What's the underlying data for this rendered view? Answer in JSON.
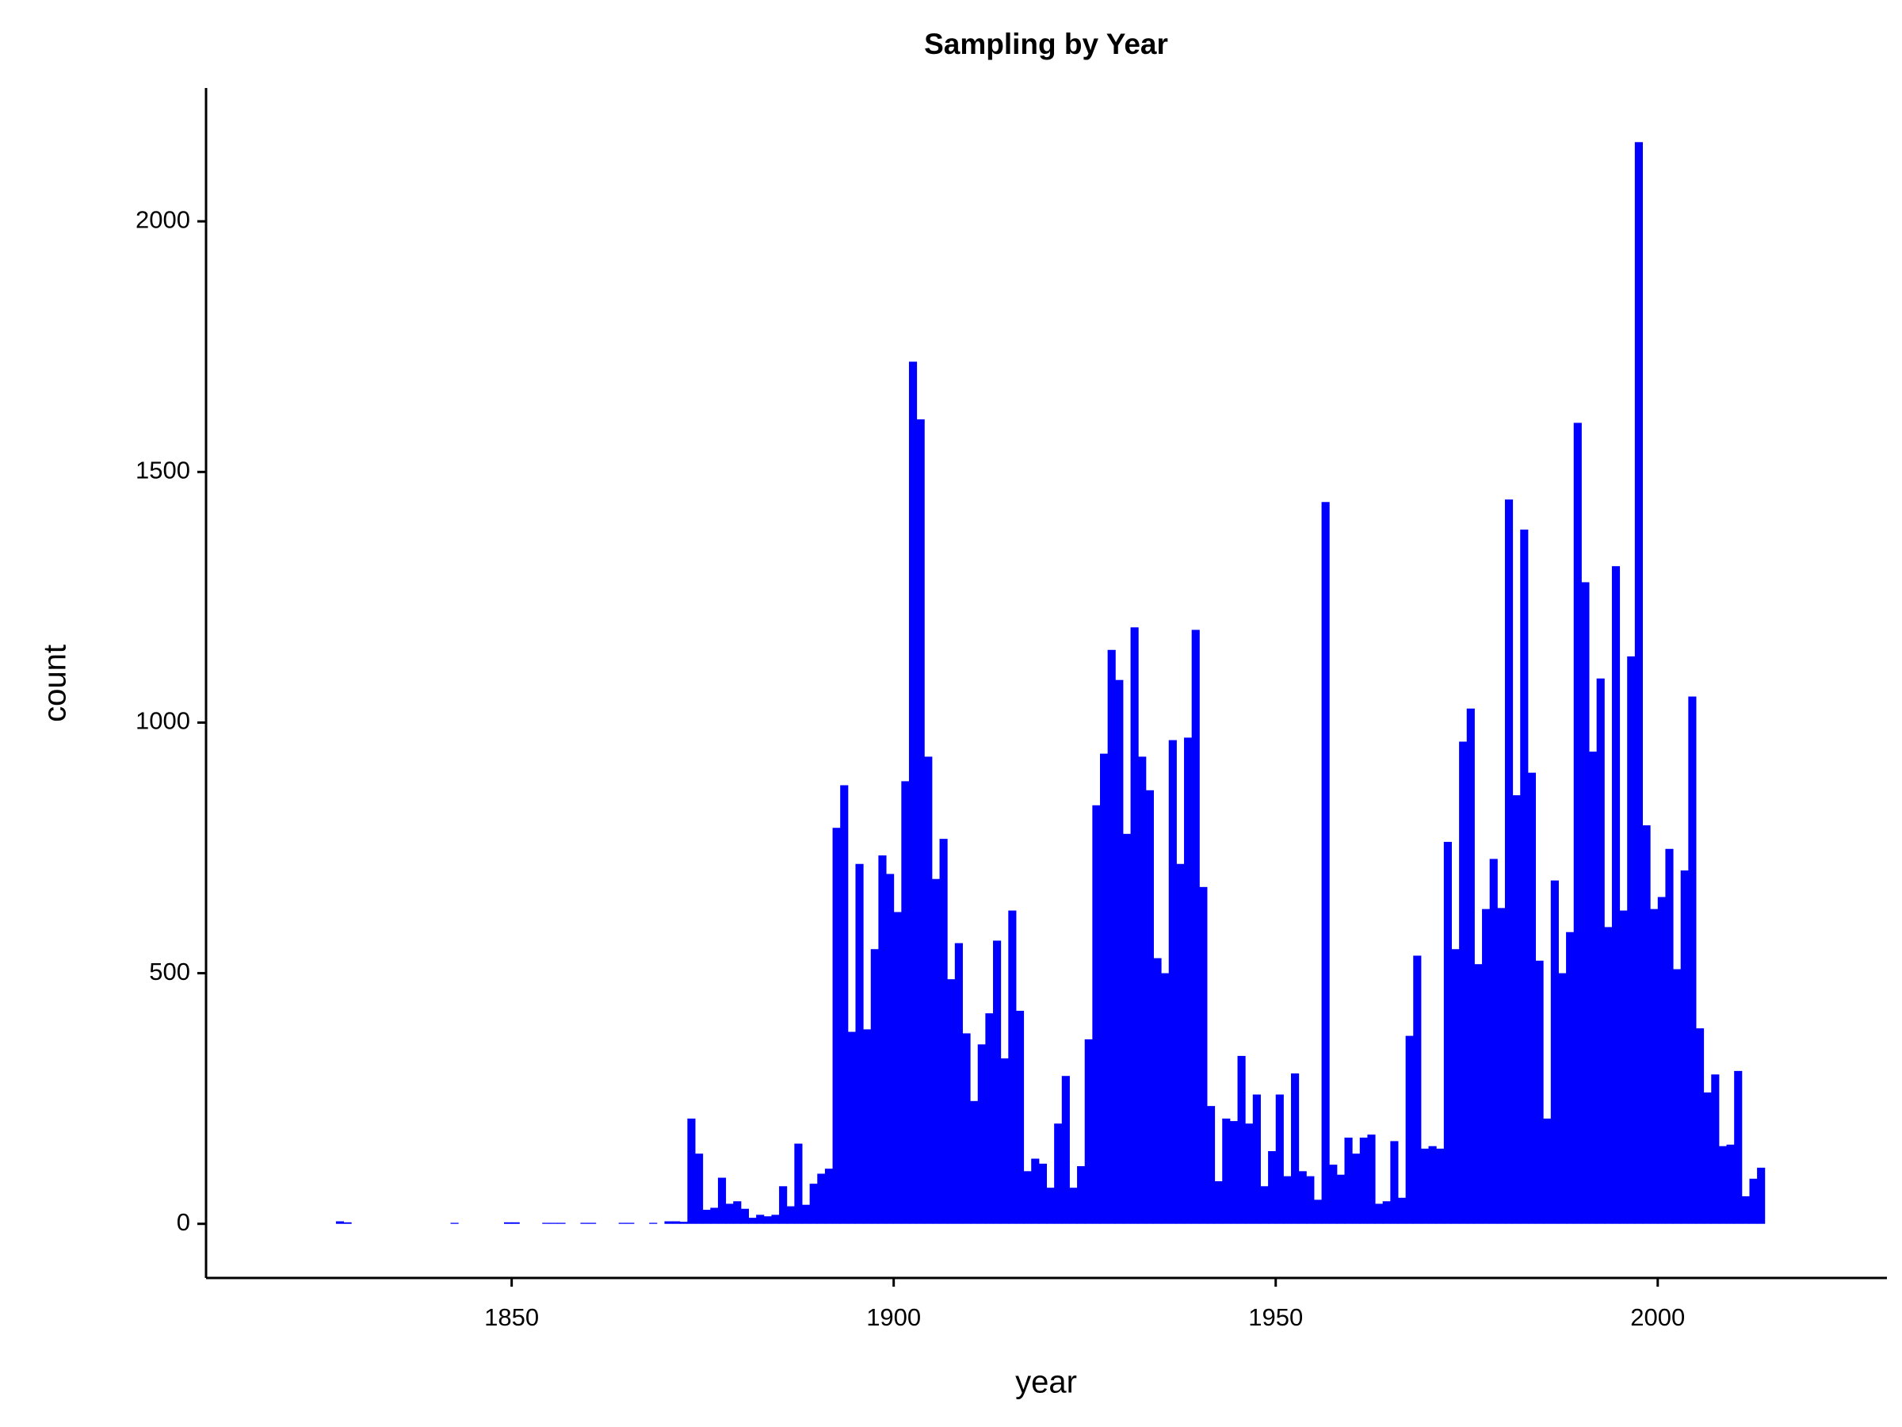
{
  "chart_data": {
    "type": "histogram",
    "title": "Sampling by Year",
    "xlabel": "year",
    "ylabel": "count",
    "color": "#0000ff",
    "bins": [
      1827,
      1828,
      1829,
      1830,
      1831,
      1832,
      1833,
      1834,
      1835,
      1836,
      1837,
      1838,
      1839,
      1840,
      1841,
      1842,
      1843,
      1844,
      1845,
      1846,
      1847,
      1848,
      1849,
      1850,
      1851,
      1852,
      1853,
      1854,
      1855,
      1856,
      1857,
      1858,
      1859,
      1860,
      1861,
      1862,
      1863,
      1864,
      1865,
      1866,
      1867,
      1868,
      1869,
      1870,
      1871,
      1872,
      1873,
      1874,
      1875,
      1876,
      1877,
      1878,
      1879,
      1880,
      1881,
      1882,
      1883,
      1884,
      1885,
      1886,
      1887,
      1888,
      1889,
      1890,
      1891,
      1892,
      1893,
      1894,
      1895,
      1896,
      1897,
      1898,
      1899,
      1900,
      1901,
      1902,
      1903,
      1904,
      1905,
      1906,
      1907,
      1908,
      1909,
      1910,
      1911,
      1912,
      1913,
      1914,
      1915,
      1916,
      1917,
      1918,
      1919,
      1920,
      1921,
      1922,
      1923,
      1924,
      1925,
      1926,
      1927,
      1928,
      1929,
      1930,
      1931,
      1932,
      1933,
      1934,
      1935,
      1936,
      1937,
      1938,
      1939,
      1940,
      1941,
      1942,
      1943,
      1944,
      1945,
      1946,
      1947,
      1948,
      1949,
      1950,
      1951,
      1952,
      1953,
      1954,
      1955,
      1956,
      1957,
      1958,
      1959,
      1960,
      1961,
      1962,
      1963,
      1964,
      1965,
      1966,
      1967,
      1968,
      1969,
      1970,
      1971,
      1972,
      1973,
      1974,
      1975,
      1976,
      1977,
      1978,
      1979,
      1980,
      1981,
      1982,
      1983,
      1984,
      1985,
      1986,
      1987,
      1988,
      1989,
      1990,
      1991,
      1992,
      1993,
      1994,
      1995,
      1996,
      1997,
      1998,
      1999,
      2000,
      2001,
      2002,
      2003,
      2004,
      2005,
      2006,
      2007,
      2008,
      2009,
      2010,
      2011,
      2012,
      2013,
      2014
    ],
    "values": [
      5,
      3,
      0,
      0,
      0,
      0,
      0,
      0,
      0,
      0,
      0,
      0,
      0,
      0,
      0,
      2,
      0,
      0,
      0,
      0,
      0,
      0,
      3,
      3,
      0,
      0,
      0,
      2,
      2,
      2,
      0,
      0,
      2,
      2,
      0,
      0,
      0,
      2,
      2,
      0,
      0,
      2,
      0,
      5,
      5,
      4,
      210,
      140,
      28,
      32,
      92,
      40,
      45,
      30,
      12,
      18,
      15,
      18,
      75,
      35,
      160,
      38,
      80,
      100,
      110,
      790,
      875,
      383,
      718,
      388,
      548,
      735,
      698,
      622,
      883,
      1720,
      1605,
      932,
      688,
      768,
      488,
      560,
      380,
      245,
      358,
      420,
      565,
      330,
      625,
      425,
      105,
      130,
      120,
      72,
      200,
      295,
      72,
      115,
      368,
      835,
      938,
      1145,
      1085,
      778,
      1190,
      932,
      865,
      530,
      500,
      965,
      718,
      970,
      1185,
      672,
      235,
      85,
      210,
      205,
      335,
      200,
      258,
      75,
      145,
      258,
      95,
      300,
      105,
      95,
      48,
      1440,
      118,
      98,
      172,
      140,
      172,
      178,
      40,
      45,
      165,
      52,
      375,
      535,
      150,
      155,
      150,
      762,
      548,
      962,
      1028,
      518,
      628,
      728,
      630,
      1445,
      855,
      1385,
      900,
      525,
      210,
      685,
      500,
      582,
      1598,
      1280,
      942,
      1088,
      592,
      1312,
      625,
      1132,
      2158,
      795,
      628,
      652,
      748,
      508,
      705,
      1052,
      390,
      262,
      298,
      155,
      158,
      305,
      55,
      90,
      112
    ],
    "xlim": [
      1810,
      2030
    ],
    "xticks": [
      1850,
      1900,
      1950,
      2000
    ],
    "ylim": [
      -108,
      2266
    ],
    "yticks": [
      0,
      500,
      1000,
      1500,
      2000
    ]
  }
}
